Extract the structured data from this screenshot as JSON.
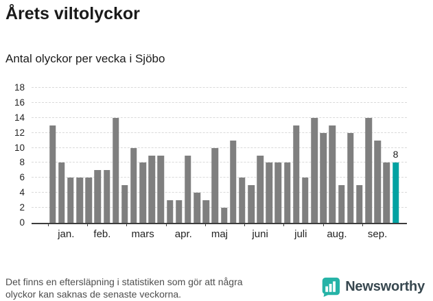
{
  "page": {
    "title": "Årets viltolyckor",
    "subtitle": "Antal olyckor per vecka i Sjöbo",
    "footnote": {
      "line1": "Det finns en eftersläpning i statistiken som gör att några",
      "line2": "olyckor kan saknas de senaste veckorna."
    },
    "brand": {
      "name": "Newsworthy",
      "color": "#26b3a7"
    }
  },
  "chart_data": {
    "type": "bar",
    "title": "Årets viltolyckor",
    "subtitle": "Antal olyckor per vecka i Sjöbo",
    "ylabel": "Antal olyckor per vecka",
    "xlabel": "",
    "ylim": [
      0,
      18
    ],
    "y_ticks": [
      0,
      2,
      4,
      6,
      8,
      10,
      12,
      14,
      16,
      18
    ],
    "grid": "dashed-horizontal",
    "values": [
      13,
      8,
      6,
      6,
      6,
      7,
      7,
      14,
      5,
      10,
      8,
      9,
      9,
      3,
      3,
      9,
      4,
      3,
      10,
      2,
      11,
      6,
      5,
      9,
      8,
      8,
      8,
      13,
      6,
      14,
      12,
      13,
      5,
      12,
      5,
      14,
      11,
      8,
      8
    ],
    "highlight_index": 38,
    "highlight_label": "8",
    "bar_color": "#7f7f7f",
    "highlight_color": "#00a2a2",
    "months": [
      {
        "label": "jan.",
        "center": 1.5
      },
      {
        "label": "feb.",
        "center": 5.5
      },
      {
        "label": "mars",
        "center": 10
      },
      {
        "label": "apr.",
        "center": 14.5
      },
      {
        "label": "maj",
        "center": 18.5
      },
      {
        "label": "juni",
        "center": 23
      },
      {
        "label": "juli",
        "center": 27.5
      },
      {
        "label": "aug.",
        "center": 31.5
      },
      {
        "label": "sep.",
        "center": 36
      }
    ],
    "month_tick_weeks": [
      0,
      4.35,
      8.7,
      13.05,
      17.4,
      21.75,
      26.1,
      30.45,
      34.8
    ]
  }
}
